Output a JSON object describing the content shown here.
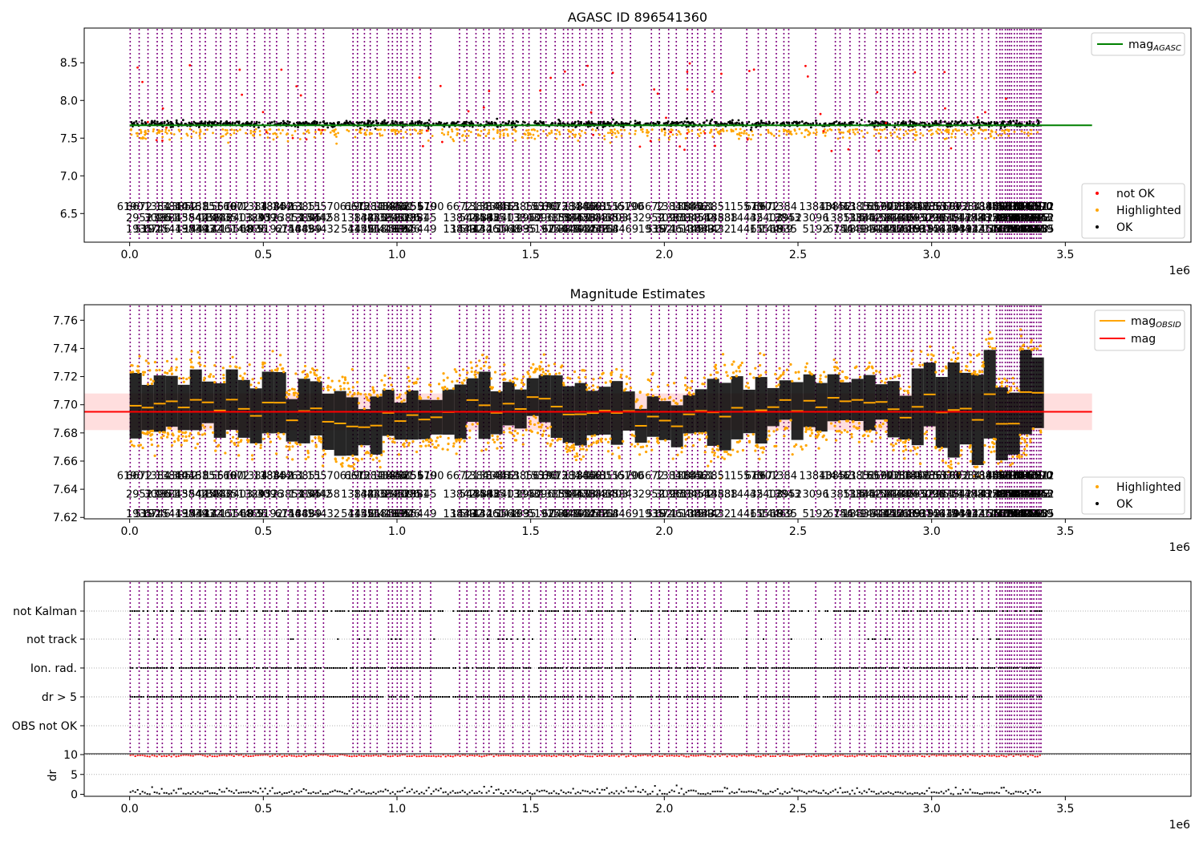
{
  "chart_data": [
    {
      "type": "scatter",
      "title": "AGASC ID 896541360",
      "x_ticks": [
        "0.0",
        "0.5",
        "1.0",
        "1.5",
        "2.0",
        "2.5",
        "3.0",
        "3.5"
      ],
      "x_tick_values": [
        0,
        500000,
        1000000,
        1500000,
        2000000,
        2500000,
        3000000,
        3500000
      ],
      "x_offset_label": "1e6",
      "xlim": [
        -170000,
        3970000
      ],
      "y_ticks": [
        "6.5",
        "7.0",
        "7.5",
        "8.0",
        "8.5"
      ],
      "y_tick_values": [
        6.5,
        7.0,
        7.5,
        8.0,
        8.5
      ],
      "ylim": [
        6.12,
        8.96
      ],
      "data_range": [
        0,
        3410000
      ],
      "reference_line": {
        "name": "mag_AGASC",
        "value": 7.67,
        "x_range": [
          0,
          3600000
        ],
        "color": "#008000"
      },
      "series": [
        {
          "name": "not OK",
          "color": "#ff0000"
        },
        {
          "name": "Highlighted",
          "color": "#ffa500"
        },
        {
          "name": "OK",
          "color": "#000000"
        }
      ],
      "obsid_label_rows": [
        [
          "6190",
          "6672",
          "1384",
          "13840",
          "13852",
          "14461",
          "13851",
          "15570"
        ],
        [
          "2952",
          "3096",
          "13851",
          "13845",
          "13842",
          "54458",
          "13838",
          "14435",
          "42403",
          "13843"
        ],
        [
          "1935",
          "5192",
          "6746",
          "15449",
          "13839",
          "14432",
          "54432",
          "14461",
          "15568",
          "14469"
        ]
      ],
      "obsid_label_values": [
        6.6,
        6.45,
        6.3
      ],
      "legend_upper": [
        {
          "label": "mag",
          "sub": "AGASC",
          "color": "#008000"
        }
      ],
      "legend_lower": [
        {
          "label": "not OK",
          "color": "#ff0000"
        },
        {
          "label": "Highlighted",
          "color": "#ffa500"
        },
        {
          "label": "OK",
          "color": "#000000"
        }
      ]
    },
    {
      "type": "scatter",
      "title": "Magnitude Estimates",
      "x_ticks": [
        "0.0",
        "0.5",
        "1.0",
        "1.5",
        "2.0",
        "2.5",
        "3.0",
        "3.5"
      ],
      "x_tick_values": [
        0,
        500000,
        1000000,
        1500000,
        2000000,
        2500000,
        3000000,
        3500000
      ],
      "x_offset_label": "1e6",
      "xlim": [
        -170000,
        3970000
      ],
      "y_ticks": [
        "7.62",
        "7.64",
        "7.66",
        "7.68",
        "7.70",
        "7.72",
        "7.74",
        "7.76"
      ],
      "y_tick_values": [
        7.62,
        7.64,
        7.66,
        7.68,
        7.7,
        7.72,
        7.74,
        7.76
      ],
      "ylim": [
        7.619,
        7.771
      ],
      "mag": {
        "value": 7.695,
        "band": [
          7.682,
          7.708
        ],
        "x_range": [
          -170000,
          3600000
        ],
        "color": "#ff0000"
      },
      "obsid_label_values": [
        7.65,
        7.637,
        7.623
      ],
      "legend_upper": [
        {
          "label": "mag",
          "sub": "OBSID",
          "color": "#ffa500"
        },
        {
          "label": "mag",
          "sub": "",
          "color": "#ff0000"
        }
      ],
      "legend_lower": [
        {
          "label": "Highlighted",
          "color": "#ffa500"
        },
        {
          "label": "OK",
          "color": "#000000"
        }
      ]
    },
    {
      "type": "scatter",
      "x_ticks": [
        "0.0",
        "0.5",
        "1.0",
        "1.5",
        "2.0",
        "2.5",
        "3.0",
        "3.5"
      ],
      "x_tick_values": [
        0,
        500000,
        1000000,
        1500000,
        2000000,
        2500000,
        3000000,
        3500000
      ],
      "x_offset_label": "1e6",
      "xlim": [
        -170000,
        3970000
      ],
      "flag_categories": [
        "not Kalman",
        "not track",
        "Ion. rad.",
        "dr > 5",
        "OBS not OK"
      ],
      "ylabel": "dr",
      "dr_ticks": [
        "0",
        "5",
        "10"
      ],
      "dr_tick_values": [
        0,
        5,
        10
      ],
      "dr_ylim": [
        -0.5,
        10.2
      ]
    }
  ]
}
